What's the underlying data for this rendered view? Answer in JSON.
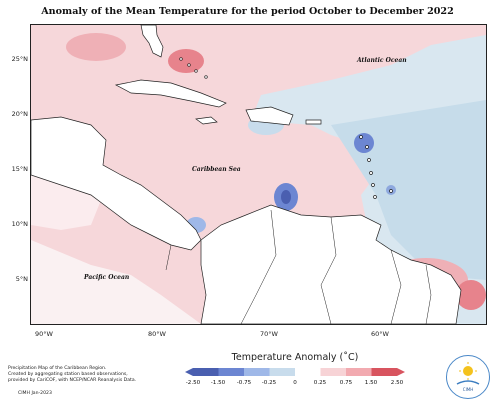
{
  "title": "Anomaly of the Mean Temperature for the period October to December 2022",
  "map": {
    "y_ticks": [
      "25°N",
      "20°N",
      "15°N",
      "10°N",
      "5°N"
    ],
    "x_ticks": [
      "90°W",
      "80°W",
      "70°W",
      "60°W"
    ],
    "labels": {
      "atlantic": "Atlantic Ocean",
      "caribbean": "Caribbean Sea",
      "pacific": "Pacific Ocean"
    }
  },
  "legend": {
    "title": "Temperature Anomaly (˚C)",
    "ticks": [
      "-2.50",
      "-1.50",
      "-0.75",
      "-0.25",
      "0",
      "0.25",
      "0.75",
      "1.50",
      "2.50"
    ],
    "colors": [
      "#4a5fb0",
      "#6c86d2",
      "#9fb8e8",
      "#c8dcec",
      "#ffffff",
      "#f7d3d6",
      "#f2aab0",
      "#e7838c",
      "#d8545f"
    ]
  },
  "footer": {
    "line1": "Precipitation Map of the Caribbean Region.",
    "line2": "Created by aggregating station based observations,",
    "line3": "provided by CariCOF, with NCEP/NCAR Reanalysis Data.",
    "credit": "CIMH Jan-2023",
    "logo_text": "CIMH"
  }
}
